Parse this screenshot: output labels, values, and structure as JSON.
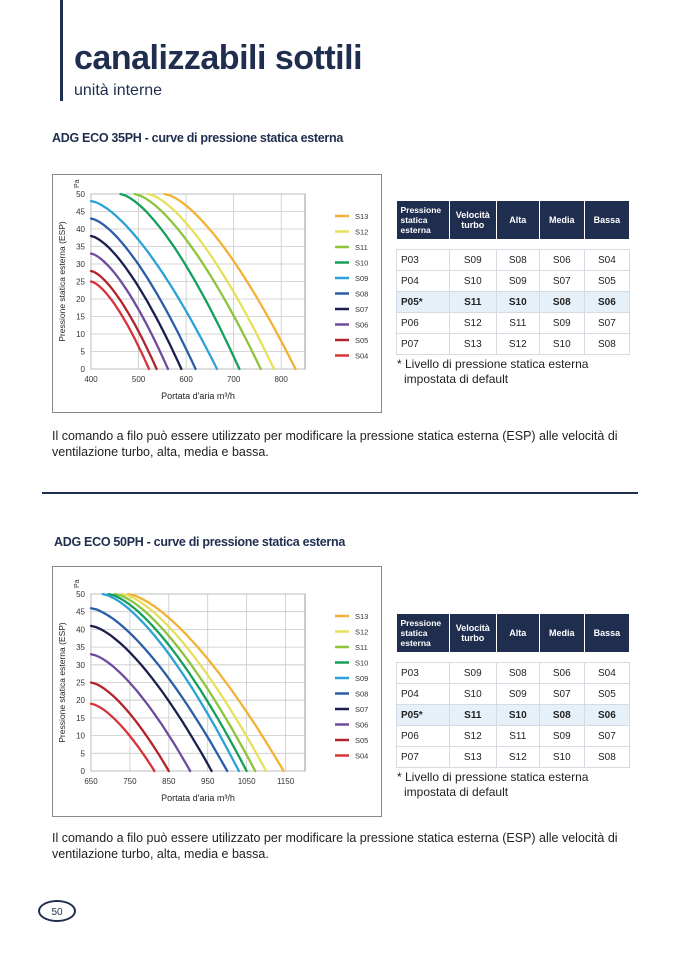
{
  "header": {
    "title": "canalizzabili sottili",
    "subtitle": "unità interne"
  },
  "sections": [
    {
      "title": "ADG ECO 35PH - curve di pressione statica esterna",
      "table": {
        "headers": [
          "Pressione statica esterna",
          "Velocità turbo",
          "Alta",
          "Media",
          "Bassa"
        ],
        "rows": [
          [
            "P03",
            "S09",
            "S08",
            "S06",
            "S04"
          ],
          [
            "P04",
            "S10",
            "S09",
            "S07",
            "S05"
          ],
          [
            "P05*",
            "S11",
            "S10",
            "S08",
            "S06"
          ],
          [
            "P06",
            "S12",
            "S11",
            "S09",
            "S07"
          ],
          [
            "P07",
            "S13",
            "S12",
            "S10",
            "S08"
          ]
        ]
      },
      "note_line1": "* Livello di pressione statica esterna",
      "note_line2": "impostata di default",
      "body_line1": "Il comando a filo può essere utilizzato per modificare la pressione statica esterna (ESP) alle velocità di",
      "body_line2": "ventilazione turbo, alta, media e bassa."
    },
    {
      "title": "ADG ECO 50PH - curve di pressione statica esterna",
      "table": {
        "headers": [
          "Pressione statica esterna",
          "Velocità turbo",
          "Alta",
          "Media",
          "Bassa"
        ],
        "rows": [
          [
            "P03",
            "S09",
            "S08",
            "S06",
            "S04"
          ],
          [
            "P04",
            "S10",
            "S09",
            "S07",
            "S05"
          ],
          [
            "P05*",
            "S11",
            "S10",
            "S08",
            "S06"
          ],
          [
            "P06",
            "S12",
            "S11",
            "S09",
            "S07"
          ],
          [
            "P07",
            "S13",
            "S12",
            "S10",
            "S08"
          ]
        ]
      },
      "note_line1": "* Livello di pressione statica esterna",
      "note_line2": "impostata di default",
      "body_line1": "Il comando a filo può essere utilizzato per modificare la pressione statica esterna (ESP) alle velocità di",
      "body_line2": "ventilazione turbo, alta, media e bassa."
    }
  ],
  "chart_data": [
    {
      "type": "line",
      "title": "ADG ECO 35PH - curve di pressione statica esterna",
      "xlabel": "Portata d'aria m³/h",
      "ylabel": "Pressione statica esterna (ESP)",
      "yunit": "Pa",
      "xlim": [
        400,
        850
      ],
      "ylim": [
        0,
        50
      ],
      "xticks": [
        400,
        500,
        600,
        700,
        800
      ],
      "yticks": [
        0,
        5,
        10,
        15,
        20,
        25,
        30,
        35,
        40,
        45,
        50
      ],
      "grid": true,
      "legend": "right",
      "series": [
        {
          "name": "S13",
          "color": "#f2b233",
          "top_x": 555,
          "top_y": 50,
          "end_x": 830
        },
        {
          "name": "S12",
          "color": "#e6e05a",
          "top_x": 520,
          "top_y": 50,
          "end_x": 785
        },
        {
          "name": "S11",
          "color": "#8cc43c",
          "top_x": 492,
          "top_y": 50,
          "end_x": 757
        },
        {
          "name": "S10",
          "color": "#14a05a",
          "top_x": 462,
          "top_y": 50,
          "end_x": 712
        },
        {
          "name": "S09",
          "color": "#2aa2d8",
          "top_x": 400,
          "top_y": 48,
          "end_x": 665
        },
        {
          "name": "S08",
          "color": "#2b5da8",
          "top_x": 400,
          "top_y": 43,
          "end_x": 620
        },
        {
          "name": "S07",
          "color": "#1a1f4e",
          "top_x": 400,
          "top_y": 38,
          "end_x": 590
        },
        {
          "name": "S06",
          "color": "#6f4ba0",
          "top_x": 400,
          "top_y": 33,
          "end_x": 562
        },
        {
          "name": "S05",
          "color": "#b0242c",
          "top_x": 400,
          "top_y": 28,
          "end_x": 538
        },
        {
          "name": "S04",
          "color": "#d8323a",
          "top_x": 400,
          "top_y": 25,
          "end_x": 522
        }
      ]
    },
    {
      "type": "line",
      "title": "ADG ECO 50PH - curve di pressione statica esterna",
      "xlabel": "Portata d'aria m³/h",
      "ylabel": "Pressione statica esterna (ESP)",
      "yunit": "Pa",
      "xlim": [
        650,
        1200
      ],
      "ylim": [
        0,
        50
      ],
      "xticks": [
        650,
        750,
        850,
        950,
        1050,
        1150
      ],
      "yticks": [
        0,
        5,
        10,
        15,
        20,
        25,
        30,
        35,
        40,
        45,
        50
      ],
      "grid": true,
      "legend": "right",
      "series": [
        {
          "name": "S13",
          "color": "#f2b233",
          "top_x": 745,
          "top_y": 50,
          "end_x": 1145
        },
        {
          "name": "S12",
          "color": "#e6e05a",
          "top_x": 730,
          "top_y": 50,
          "end_x": 1100
        },
        {
          "name": "S11",
          "color": "#8cc43c",
          "top_x": 712,
          "top_y": 50,
          "end_x": 1072
        },
        {
          "name": "S10",
          "color": "#14a05a",
          "top_x": 695,
          "top_y": 50,
          "end_x": 1050
        },
        {
          "name": "S09",
          "color": "#2aa2d8",
          "top_x": 680,
          "top_y": 50,
          "end_x": 1030
        },
        {
          "name": "S08",
          "color": "#2b5da8",
          "top_x": 650,
          "top_y": 46,
          "end_x": 1000
        },
        {
          "name": "S07",
          "color": "#1a1f4e",
          "top_x": 650,
          "top_y": 41,
          "end_x": 960
        },
        {
          "name": "S06",
          "color": "#6f4ba0",
          "top_x": 650,
          "top_y": 33,
          "end_x": 905
        },
        {
          "name": "S05",
          "color": "#b0242c",
          "top_x": 650,
          "top_y": 25,
          "end_x": 850
        },
        {
          "name": "S04",
          "color": "#d8323a",
          "top_x": 650,
          "top_y": 19,
          "end_x": 813
        }
      ]
    }
  ],
  "footer": {
    "page_number": "50"
  }
}
